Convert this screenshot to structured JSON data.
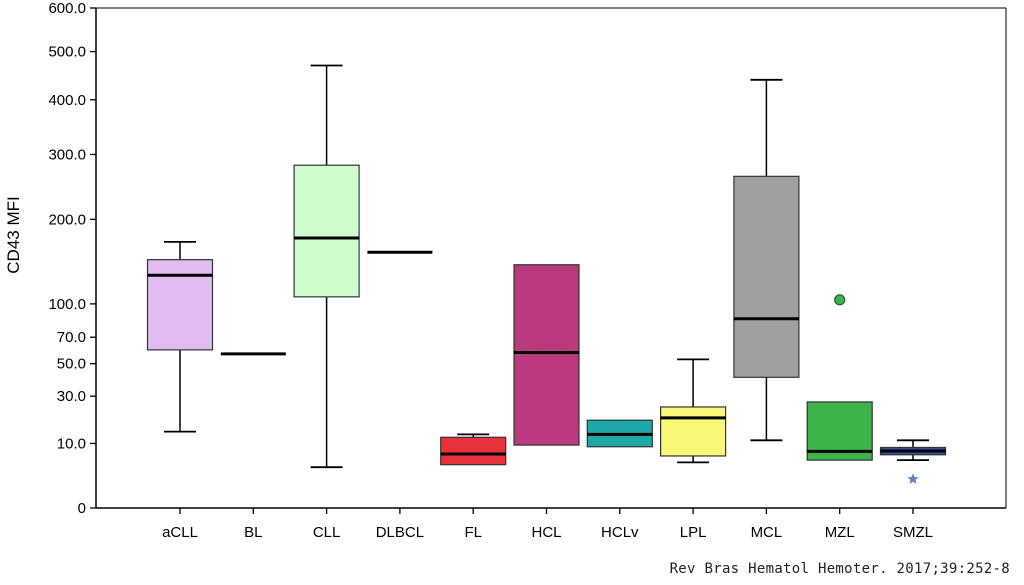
{
  "chart_data": {
    "type": "box",
    "ylabel": "CD43 MFI",
    "y_scale": "sqrt",
    "ylim": [
      0,
      600
    ],
    "y_ticks": [
      {
        "value": 0,
        "label": "0"
      },
      {
        "value": 10,
        "label": "10.0"
      },
      {
        "value": 30,
        "label": "30.0"
      },
      {
        "value": 50,
        "label": "50.0"
      },
      {
        "value": 70,
        "label": "70.0"
      },
      {
        "value": 100,
        "label": "100.0"
      },
      {
        "value": 200,
        "label": "200.0"
      },
      {
        "value": 300,
        "label": "300.0"
      },
      {
        "value": 400,
        "label": "400.0"
      },
      {
        "value": 500,
        "label": "500.0"
      },
      {
        "value": 600,
        "label": "600.0"
      }
    ],
    "categories": [
      "aCLL",
      "BL",
      "CLL",
      "DLBCL",
      "FL",
      "HCL",
      "HCLv",
      "LPL",
      "MCL",
      "MZL",
      "SMZL"
    ],
    "boxes": [
      {
        "category": "aCLL",
        "min": 14,
        "q1": 60,
        "median": 130,
        "q3": 148,
        "max": 170,
        "color": "#e0bcf2"
      },
      {
        "category": "BL",
        "min": 57,
        "q1": 57,
        "median": 57,
        "q3": 57,
        "max": 57,
        "color": "#ffffff"
      },
      {
        "category": "CLL",
        "min": 4,
        "q1": 107,
        "median": 175,
        "q3": 282,
        "max": 470,
        "color": "#cdfccd"
      },
      {
        "category": "DLBCL",
        "min": 157,
        "q1": 157,
        "median": 157,
        "q3": 157,
        "max": 157,
        "color": "#ffffff"
      },
      {
        "category": "FL",
        "min": 4.5,
        "q1": 4.5,
        "median": 7,
        "q3": 12,
        "max": 13,
        "color": "#e8323c"
      },
      {
        "category": "HCL",
        "min": 9.5,
        "q1": 9.5,
        "median": 58,
        "q3": 142,
        "max": 142,
        "color": "#b93a7d"
      },
      {
        "category": "HCLv",
        "min": 9,
        "q1": 9,
        "median": 13,
        "q3": 18.5,
        "max": 18.5,
        "color": "#1fa8a8"
      },
      {
        "category": "LPL",
        "min": 5,
        "q1": 6.5,
        "median": 19.5,
        "q3": 24.5,
        "max": 53,
        "color": "#f8f778"
      },
      {
        "category": "MCL",
        "min": 11,
        "q1": 41,
        "median": 86,
        "q3": 264,
        "max": 440,
        "color": "#a0a0a0"
      },
      {
        "category": "MZL",
        "min": 5.5,
        "q1": 5.5,
        "median": 7.7,
        "q3": 27,
        "max": 27,
        "color": "#3bb54a",
        "outliers": [
          {
            "value": 104,
            "marker": "circle"
          }
        ]
      },
      {
        "category": "SMZL",
        "min": 5.5,
        "q1": 6.8,
        "median": 7.8,
        "q3": 8.8,
        "max": 11,
        "color": "#3a4b9c",
        "outliers": [
          {
            "value": 2,
            "marker": "star"
          }
        ]
      }
    ]
  },
  "citation": "Rev Bras Hematol Hemoter. 2017;39:252-8"
}
